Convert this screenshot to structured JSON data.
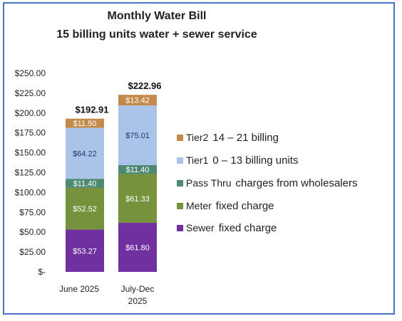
{
  "chart_data": {
    "type": "bar",
    "stacked": true,
    "title": "Monthly Water Bill",
    "subtitle": "15 billing units water + sewer service",
    "categories": [
      "June 2025",
      "July-Dec 2025"
    ],
    "category_lines": [
      [
        "June 2025"
      ],
      [
        "July-Dec",
        "2025"
      ]
    ],
    "ylim": [
      0,
      250
    ],
    "yticks": [
      0,
      25,
      50,
      75,
      100,
      125,
      150,
      175,
      200,
      225,
      250
    ],
    "ytick_labels": [
      "$-",
      "$25.00",
      "$50.00",
      "$75.00",
      "$100.00",
      "$125.00",
      "$150.00",
      "$175.00",
      "$200.00",
      "$225.00",
      "$250.00"
    ],
    "grid": false,
    "legend_position": "right",
    "series": [
      {
        "name": "Sewer",
        "description": "fixed charge",
        "color": "#7030a0",
        "label_color": "#ffffff",
        "values": [
          53.27,
          61.8
        ],
        "labels": [
          "$53.27",
          "$61.80"
        ]
      },
      {
        "name": "Meter",
        "description": "fixed charge",
        "color": "#76923c",
        "label_color": "#ffffff",
        "values": [
          52.52,
          61.33
        ],
        "labels": [
          "$52.52",
          "$61.33"
        ]
      },
      {
        "name": "Pass Thru",
        "description": "charges from wholesalers",
        "color": "#4e8a72",
        "label_color": "#ffffff",
        "values": [
          11.4,
          11.4
        ],
        "labels": [
          "$11.40",
          "$11.40"
        ]
      },
      {
        "name": "Tier1",
        "description": "0 – 13 billing units",
        "color": "#a9c3e9",
        "label_color": "#1f3864",
        "values": [
          64.22,
          75.01
        ],
        "labels": [
          "$64.22",
          "$75.01"
        ]
      },
      {
        "name": "Tier2",
        "description": "14 – 21 billing",
        "color": "#c48a4c",
        "label_color": "#ffffff",
        "values": [
          11.5,
          13.42
        ],
        "labels": [
          "$11.50",
          "$13.42"
        ]
      }
    ],
    "totals": [
      192.91,
      222.96
    ],
    "total_labels": [
      "$192.91",
      "$222.96"
    ]
  }
}
